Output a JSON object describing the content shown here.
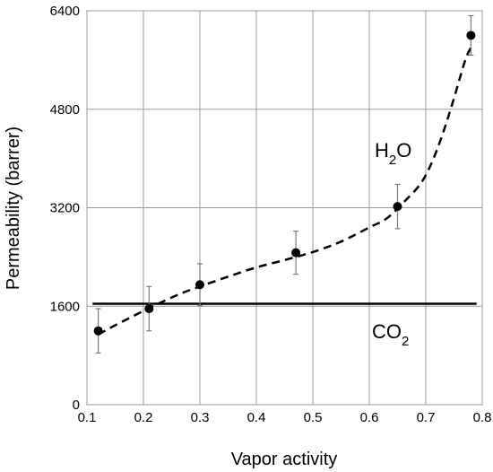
{
  "chart_data": {
    "type": "scatter",
    "xlabel": "Vapor activity",
    "ylabel": "Permeability (barrer)",
    "xlim": [
      0.1,
      0.8
    ],
    "ylim": [
      0,
      6400
    ],
    "xticks": [
      0.1,
      0.2,
      0.3,
      0.4,
      0.5,
      0.6,
      0.7,
      0.8
    ],
    "xtick_labels": [
      "0.1",
      "0.2",
      "0.3",
      "0.4",
      "0.5",
      "0.6",
      "0.7",
      "0.8"
    ],
    "yticks": [
      0,
      1600,
      3200,
      4800,
      6400
    ],
    "ytick_labels": [
      "0",
      "1600",
      "3200",
      "4800",
      "6400"
    ],
    "grid": true,
    "colors": {
      "series": "#000000",
      "grid": "#9a9a9a",
      "errorbar": "#7a7a7a"
    },
    "series": [
      {
        "label_main": "H",
        "label_sub": "2",
        "label_tail": "O",
        "style": "markers with error bars and dashed fit curve",
        "points": [
          {
            "x": 0.12,
            "y": 1200,
            "err": 360
          },
          {
            "x": 0.21,
            "y": 1560,
            "err": 360
          },
          {
            "x": 0.3,
            "y": 1950,
            "err": 340
          },
          {
            "x": 0.47,
            "y": 2470,
            "err": 350
          },
          {
            "x": 0.65,
            "y": 3220,
            "err": 360
          },
          {
            "x": 0.78,
            "y": 6000,
            "err": 320
          }
        ],
        "fit_curve": [
          [
            0.12,
            1140
          ],
          [
            0.15,
            1290
          ],
          [
            0.18,
            1430
          ],
          [
            0.21,
            1570
          ],
          [
            0.24,
            1700
          ],
          [
            0.27,
            1820
          ],
          [
            0.3,
            1920
          ],
          [
            0.35,
            2080
          ],
          [
            0.4,
            2230
          ],
          [
            0.45,
            2350
          ],
          [
            0.5,
            2480
          ],
          [
            0.55,
            2650
          ],
          [
            0.6,
            2880
          ],
          [
            0.63,
            3020
          ],
          [
            0.66,
            3280
          ],
          [
            0.69,
            3580
          ],
          [
            0.71,
            3920
          ],
          [
            0.73,
            4400
          ],
          [
            0.75,
            4980
          ],
          [
            0.77,
            5600
          ],
          [
            0.78,
            5800
          ]
        ]
      },
      {
        "label_main": "CO",
        "label_sub": "2",
        "label_tail": "",
        "style": "solid horizontal line",
        "line": [
          [
            0.11,
            1640
          ],
          [
            0.79,
            1640
          ]
        ]
      }
    ]
  }
}
